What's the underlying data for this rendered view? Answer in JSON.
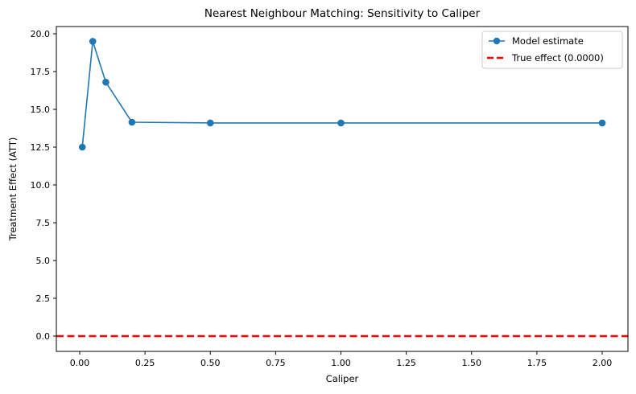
{
  "chart_data": {
    "type": "line",
    "title": "Nearest Neighbour Matching: Sensitivity to Caliper",
    "xlabel": "Caliper",
    "ylabel": "Treatment Effect (ATT)",
    "xlim": [
      -0.09,
      2.1
    ],
    "ylim": [
      -1.05,
      20.5
    ],
    "xticks": [
      0.0,
      0.25,
      0.5,
      0.75,
      1.0,
      1.25,
      1.5,
      1.75,
      2.0
    ],
    "xtick_labels": [
      "0.00",
      "0.25",
      "0.50",
      "0.75",
      "1.00",
      "1.25",
      "1.50",
      "1.75",
      "2.00"
    ],
    "yticks": [
      0.0,
      2.5,
      5.0,
      7.5,
      10.0,
      12.5,
      15.0,
      17.5,
      20.0
    ],
    "ytick_labels": [
      "0.0",
      "2.5",
      "5.0",
      "7.5",
      "10.0",
      "12.5",
      "15.0",
      "17.5",
      "20.0"
    ],
    "grid": false,
    "legend_position": "upper right",
    "series": [
      {
        "name": "Model estimate",
        "style": "line-with-circle-markers",
        "color": "#1f77b4",
        "x": [
          0.01,
          0.05,
          0.1,
          0.2,
          0.5,
          1.0,
          2.0
        ],
        "y": [
          12.5,
          19.5,
          16.8,
          14.15,
          14.1,
          14.1,
          14.1
        ]
      },
      {
        "name": "True effect (0.0000)",
        "style": "horizontal-dashed-line",
        "color": "#ff0000",
        "y": 0.0
      }
    ]
  },
  "legend": {
    "items": [
      {
        "label": "Model estimate"
      },
      {
        "label": "True effect (0.0000)"
      }
    ]
  }
}
